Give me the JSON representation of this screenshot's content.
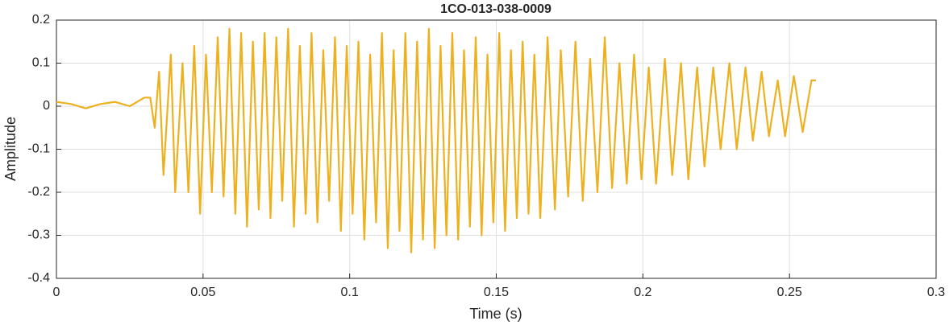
{
  "chart_data": {
    "type": "line",
    "title": "1CO-013-038-0009",
    "xlabel": "Time (s)",
    "ylabel": "Amplitude",
    "color": "#EDB120",
    "grid": true,
    "xlim": [
      0,
      0.3
    ],
    "xticks": [
      0,
      0.05,
      0.1,
      0.15,
      0.2,
      0.25,
      0.3
    ],
    "ylim": [
      -0.4,
      0.2
    ],
    "yticks": [
      -0.4,
      -0.3,
      -0.2,
      -0.1,
      0,
      0.1,
      0.2
    ],
    "x": [
      0,
      0.005,
      0.01,
      0.015,
      0.02,
      0.025,
      0.03,
      0.032,
      0.0335,
      0.035,
      0.0365,
      0.039,
      0.0405,
      0.043,
      0.045,
      0.047,
      0.049,
      0.051,
      0.053,
      0.055,
      0.057,
      0.059,
      0.061,
      0.063,
      0.065,
      0.067,
      0.069,
      0.071,
      0.073,
      0.075,
      0.077,
      0.079,
      0.081,
      0.083,
      0.085,
      0.087,
      0.089,
      0.091,
      0.093,
      0.095,
      0.097,
      0.099,
      0.101,
      0.103,
      0.105,
      0.107,
      0.109,
      0.111,
      0.113,
      0.115,
      0.117,
      0.119,
      0.121,
      0.123,
      0.125,
      0.127,
      0.129,
      0.131,
      0.133,
      0.135,
      0.137,
      0.139,
      0.141,
      0.143,
      0.145,
      0.147,
      0.149,
      0.151,
      0.153,
      0.155,
      0.157,
      0.159,
      0.161,
      0.163,
      0.165,
      0.1675,
      0.17,
      0.172,
      0.1745,
      0.177,
      0.1795,
      0.182,
      0.1845,
      0.187,
      0.1895,
      0.192,
      0.1945,
      0.197,
      0.1995,
      0.202,
      0.2045,
      0.2075,
      0.21,
      0.213,
      0.2155,
      0.2185,
      0.221,
      0.224,
      0.2265,
      0.2295,
      0.232,
      0.235,
      0.2375,
      0.2405,
      0.243,
      0.246,
      0.2485,
      0.2515,
      0.2545,
      0.2575,
      0.259
    ],
    "values": [
      0.01,
      0.005,
      -0.005,
      0.005,
      0.01,
      0.0,
      0.02,
      0.02,
      -0.05,
      0.08,
      -0.16,
      0.12,
      -0.2,
      0.1,
      -0.2,
      0.14,
      -0.25,
      0.12,
      -0.2,
      0.16,
      -0.21,
      0.18,
      -0.25,
      0.17,
      -0.28,
      0.15,
      -0.24,
      0.17,
      -0.26,
      0.16,
      -0.22,
      0.18,
      -0.28,
      0.14,
      -0.25,
      0.17,
      -0.27,
      0.13,
      -0.22,
      0.16,
      -0.29,
      0.14,
      -0.25,
      0.15,
      -0.31,
      0.12,
      -0.27,
      0.17,
      -0.33,
      0.13,
      -0.29,
      0.17,
      -0.34,
      0.15,
      -0.31,
      0.18,
      -0.33,
      0.14,
      -0.3,
      0.17,
      -0.31,
      0.13,
      -0.28,
      0.16,
      -0.3,
      0.12,
      -0.27,
      0.17,
      -0.29,
      0.13,
      -0.26,
      0.15,
      -0.25,
      0.12,
      -0.26,
      0.16,
      -0.24,
      0.13,
      -0.21,
      0.15,
      -0.22,
      0.11,
      -0.2,
      0.16,
      -0.19,
      0.1,
      -0.18,
      0.12,
      -0.17,
      0.09,
      -0.18,
      0.11,
      -0.16,
      0.1,
      -0.17,
      0.09,
      -0.14,
      0.09,
      -0.1,
      0.1,
      -0.1,
      0.09,
      -0.08,
      0.08,
      -0.07,
      0.06,
      -0.07,
      0.07,
      -0.06,
      0.06,
      0.06
    ]
  }
}
